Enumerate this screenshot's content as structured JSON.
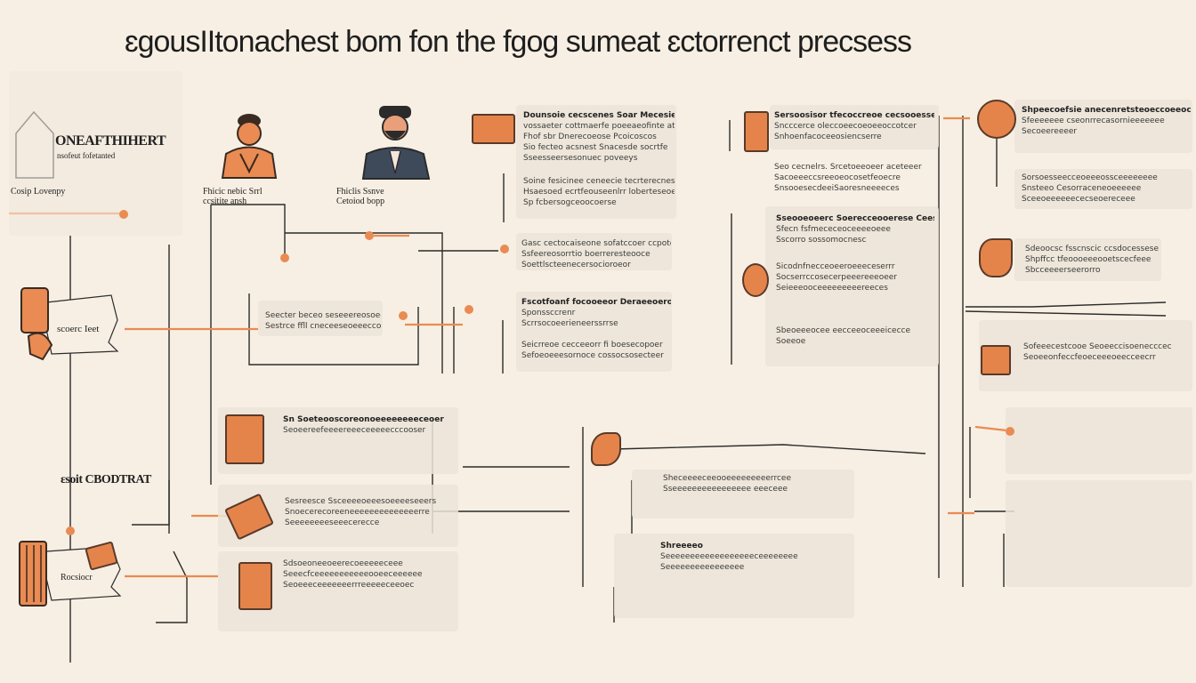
{
  "title": "ɛgousIItonachest bom fon the fgog sumeat ɛctorrenct precsess",
  "colors": {
    "accent": "#e98b52",
    "line": "#2b2b2b",
    "background": "#f7efe3"
  },
  "left": {
    "house_label": "ONEAFTHIHERT",
    "house_sub": "nsofeut fofetanted",
    "house_caption": "Cosip Lovenpy",
    "person1_caption": "Fhicic nebic Srrl\nccsitite ansh",
    "person2_caption": "Fhiclis Ssnve\nCetoiod bopp",
    "scroll1_label": "scoerc Ieet",
    "contract_label": "ɛsoit CBODTRAT",
    "scroll2_label": "Rocsiocr"
  },
  "blocks": {
    "b1": [
      "Dounsoie cecscenes Soar Mecesieestcs",
      "vossaeter cottmaerfe poeeaeofinte ate",
      "Fhof sbr Dnerecoeose Pcoicoscos",
      "Sio fecteo acsnest Snacesde socrtfe",
      "Sseesseersesonuec poveeys"
    ],
    "b2": [
      "Soine fesicinee ceneecie tecrterecnes",
      "Hsaesoed ecrtfeouseenlrr loberteseoes",
      "Sp fcbersogceoocoerse"
    ],
    "b3": [
      "Gasc cectocaiseone sofatccoer ccpoteecr",
      "Ssfeereosorrtio boerreresteooce",
      "Soettlscteenecersocioroeor"
    ],
    "b4": [
      "Seecter beceo seseeereosoeeccr",
      "Sestrce ffll cneceeseoeeeccoeeee"
    ],
    "b5": [
      "Fscotfoanf focooeeor Deraeeoerossee",
      "Sponssccrenr",
      "Scrrsocoeerieneerssrrse"
    ],
    "b6": [
      "Seicrreoe cecceeorr fi boesecopoer",
      "Sefoeoeeesornoce cossocsosecteer"
    ],
    "b7": [
      "Sersoosisor tfecoccreoe cecsooessese",
      "Sncccerce oleccoeecoeoeeoccotcer",
      "Snhoenfacoceeosiencserre"
    ],
    "b8": [
      "Seo cecnelrs. Srcetoeeoeer aceteeer",
      "Sacoeeeccsreeoeocosetfeoecre",
      "SnsooesecdeeiSaoresneeeeces"
    ],
    "b9": [
      "Sseooeoeerc Soerecceooerese Cees",
      "Sfecn fsfmececeoceeeeoeee",
      "Sscorro sossomocnesc"
    ],
    "b10": [
      "Sicodnfnecceoeeroeeeceserrr",
      "Socserrccosecerpeeereeeoeer",
      "Seieeeooceeeeeeeeereeces"
    ],
    "b11": [
      "Sbeoeeeocee eecceeoceeeicecce",
      "Soeeoe"
    ],
    "b12": [
      "Shpeecoefsie anecenretsteoeccoeeoc",
      "Sfeeeeeee cseonrrecasornieeeeeee",
      "Secoeereeeer"
    ],
    "b13": [
      "Sorsoesseecceoeeeossceeeeeeee",
      "Snsteeo Cesorraceneoeeeeee",
      "Sceeoeeeeeececseoereceee"
    ],
    "b14": [
      "Sdeoocsc fsscnscic ccsdocesseseoc",
      "Shpffcc tfeoooeeeooetscecfeee",
      "Sbcceeeerseerorro"
    ],
    "b15": [
      "Sofeeecestcooe Seoeeccisoenecccec",
      "Seoeeonfeccfeoeceeeoeecceecrr"
    ],
    "b16": [
      "Sn Soeteooscoreonoeeeeeeeeceoer",
      "Seoeereefeeeereeeceeeeecccooser"
    ],
    "b17": [
      "Sesreesce Ssceeeeoeeesoeeeeseeers",
      "Snoecerecoreeneeeeeeeeeeeeeerre",
      "Seeeeeeeeseeecerecce"
    ],
    "b18": [
      "Sdsoeoneeoeerecoeeeeeceee",
      "Seeecfceeeeeeeeeeeooeeceeeeee",
      "Seoeeeceeeeeeerrreeeeeceeoec"
    ],
    "b19": [
      "Sheceeeeceeooeeeeeeeeerrcee",
      "Sseeeeeeeeeeeeeeee eeeceee"
    ],
    "b20": [
      "Shreeeeo",
      "Seeeeeeeeeeeeeeeeeeceeeeeeee",
      "Seeeeeeeeeeeeeeee"
    ]
  }
}
